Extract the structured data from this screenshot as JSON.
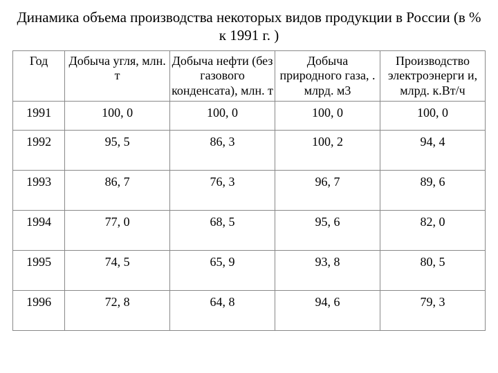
{
  "title": "Динамика объема производства некоторых видов продукции в России (в % к 1991 г. )",
  "table": {
    "type": "table",
    "background_color": "#ffffff",
    "border_color": "#888888",
    "text_color": "#000000",
    "font_family": "Times New Roman",
    "header_fontsize": 18,
    "cell_fontsize": 18,
    "columns": [
      {
        "key": "year",
        "label": "Год",
        "width_pct": 11,
        "align": "center"
      },
      {
        "key": "coal",
        "label": "Добыча угля, млн. т",
        "width_pct": 22.25,
        "align": "center"
      },
      {
        "key": "oil",
        "label": "Добыча нефти (без газового конденсата), млн. т",
        "width_pct": 22.25,
        "align": "center"
      },
      {
        "key": "gas",
        "label": "Добыча природного газа, . млрд. м3",
        "width_pct": 22.25,
        "align": "center"
      },
      {
        "key": "elec",
        "label": "Производство электроэнерги и, млрд. к.Вт/ч",
        "width_pct": 22.25,
        "align": "center"
      }
    ],
    "rows": [
      {
        "year": "1991",
        "coal": "100, 0",
        "oil": "100, 0",
        "gas": "100, 0",
        "elec": "100, 0"
      },
      {
        "year": "1992",
        "coal": "95, 5",
        "oil": "86, 3",
        "gas": "100, 2",
        "elec": "94, 4"
      },
      {
        "year": "1993",
        "coal": "86, 7",
        "oil": "76, 3",
        "gas": "96, 7",
        "elec": "89, 6"
      },
      {
        "year": "1994",
        "coal": "77, 0",
        "oil": "68, 5",
        "gas": "95, 6",
        "elec": "82, 0"
      },
      {
        "year": "1995",
        "coal": "74, 5",
        "oil": "65, 9",
        "gas": "93, 8",
        "elec": "80, 5"
      },
      {
        "year": "1996",
        "coal": "72, 8",
        "oil": "64, 8",
        "gas": "94, 6",
        "elec": "79, 3"
      }
    ]
  }
}
